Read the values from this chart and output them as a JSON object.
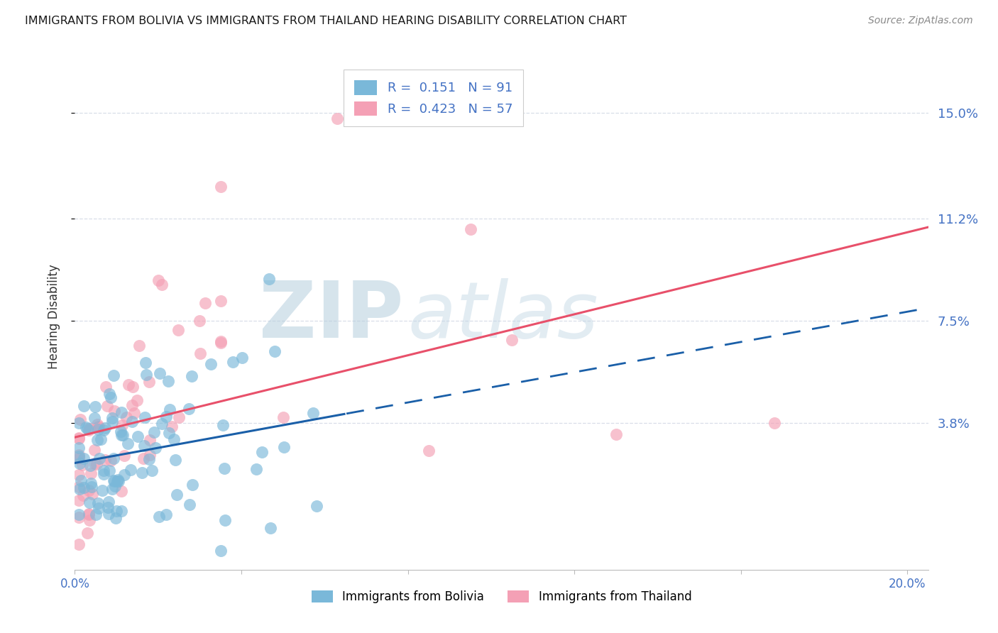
{
  "title": "IMMIGRANTS FROM BOLIVIA VS IMMIGRANTS FROM THAILAND HEARING DISABILITY CORRELATION CHART",
  "source": "Source: ZipAtlas.com",
  "ylabel": "Hearing Disability",
  "xlim": [
    0.0,
    0.205
  ],
  "ylim": [
    -0.015,
    0.168
  ],
  "ytick_vals": [
    0.038,
    0.075,
    0.112,
    0.15
  ],
  "ytick_labels": [
    "3.8%",
    "7.5%",
    "11.2%",
    "15.0%"
  ],
  "xtick_vals": [
    0.0,
    0.04,
    0.08,
    0.12,
    0.16,
    0.2
  ],
  "xtick_labels": [
    "0.0%",
    "",
    "",
    "",
    "",
    "20.0%"
  ],
  "bolivia_color": "#7ab8d9",
  "thailand_color": "#f4a0b5",
  "bolivia_R": 0.151,
  "bolivia_N": 91,
  "thailand_R": 0.423,
  "thailand_N": 57,
  "bolivia_trend_color": "#1a5fa8",
  "thailand_trend_color": "#e8506a",
  "watermark_zip_color": "#b8cfe0",
  "watermark_atlas_color": "#c5d8e8",
  "grid_color": "#d8dee8",
  "title_color": "#1a1a1a",
  "axis_label_color": "#4472c4",
  "source_color": "#888888",
  "legend_R_color": "#4472c4",
  "legend_N_color": "#e8506a"
}
